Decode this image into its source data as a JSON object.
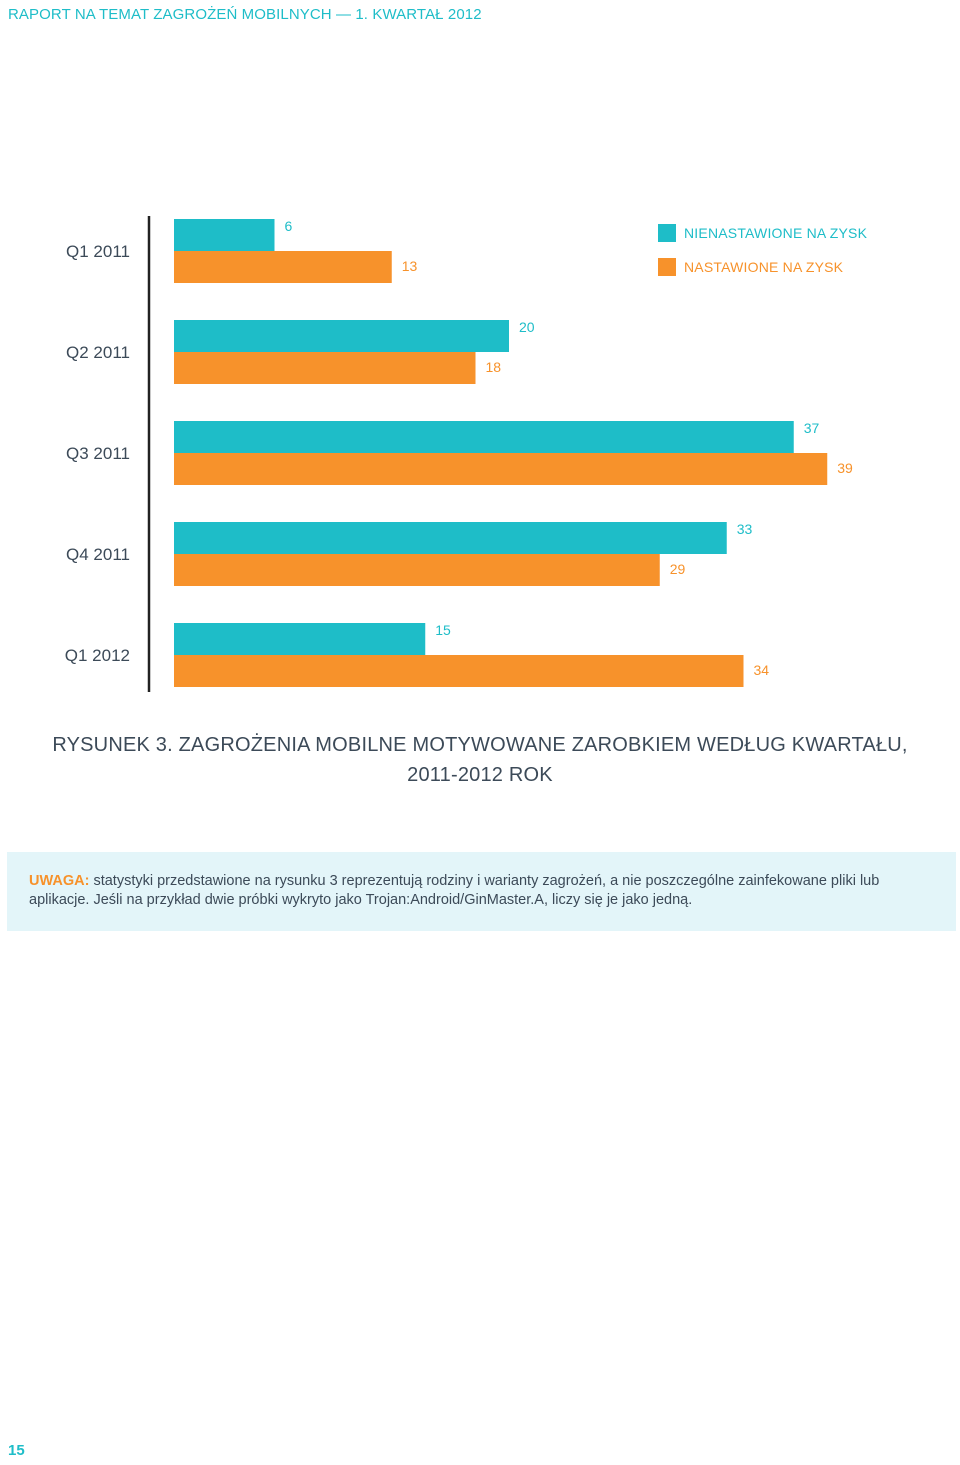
{
  "header": "RAPORT NA TEMAT ZAGROŻEŃ MOBILNYCH — 1. KWARTAŁ 2012",
  "caption": {
    "line1": "RYSUNEK 3. ZAGROŻENIA MOBILNE MOTYWOWANE ZAROBKIEM WEDŁUG KWARTAŁU,",
    "line2": "2011-2012 ROK"
  },
  "note": {
    "label": "UWAGA:",
    "text": " statystyki przedstawione na rysunku 3 reprezentują rodziny i warianty zagrożeń, a nie poszczególne zainfekowane pliki lub aplikacje. Jeśli na przykład dwie próbki wykryto jako Trojan:Android/GinMaster.A, liczy się je jako jedną."
  },
  "page_number": "15",
  "colors": {
    "teal": "#1ebdc8",
    "orange": "#f7922b",
    "text": "#3c4a58"
  },
  "chart_data": {
    "type": "bar",
    "orientation": "horizontal",
    "categories": [
      "Q1 2011",
      "Q2 2011",
      "Q3 2011",
      "Q4 2011",
      "Q1 2012"
    ],
    "series": [
      {
        "name": "NIENASTAWIONE NA ZYSK",
        "color": "#1ebdc8",
        "values": [
          6,
          20,
          37,
          33,
          15
        ]
      },
      {
        "name": "NASTAWIONE NA ZYSK",
        "color": "#f7922b",
        "values": [
          13,
          18,
          39,
          29,
          34
        ]
      }
    ],
    "xlim": [
      0,
      39
    ],
    "grid": false,
    "legend_position": "top-right"
  }
}
